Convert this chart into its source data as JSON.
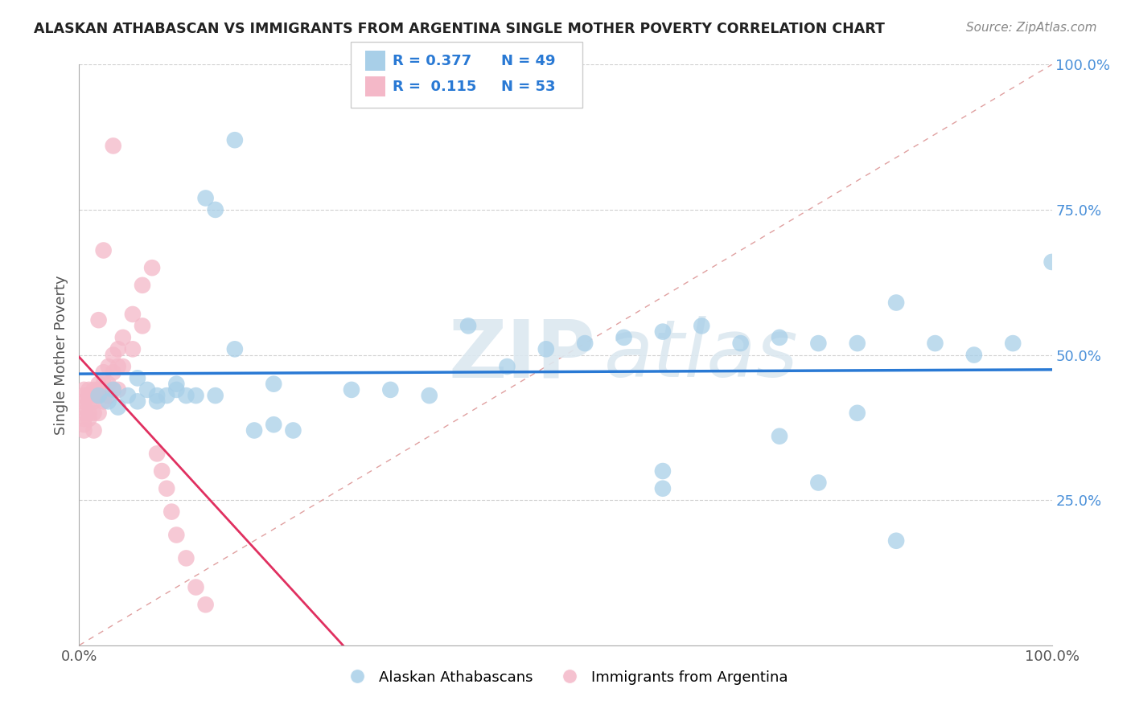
{
  "title": "ALASKAN ATHABASCAN VS IMMIGRANTS FROM ARGENTINA SINGLE MOTHER POVERTY CORRELATION CHART",
  "source": "Source: ZipAtlas.com",
  "ylabel": "Single Mother Poverty",
  "watermark_text": "ZIP",
  "watermark_text2": "atlas",
  "legend_blue_r": "R = 0.377",
  "legend_blue_n": "N = 49",
  "legend_pink_r": "R =  0.115",
  "legend_pink_n": "N = 53",
  "blue_color": "#a8cfe8",
  "pink_color": "#f4b8c8",
  "blue_line_color": "#2979d4",
  "pink_line_color": "#e03060",
  "diagonal_color": "#e0a0a0",
  "grid_color": "#d0d0d0",
  "blue_scatter_x": [
    0.035,
    0.06,
    0.1,
    0.14,
    0.2,
    0.28,
    0.32,
    0.36,
    0.4,
    0.44,
    0.48,
    0.52,
    0.56,
    0.6,
    0.64,
    0.68,
    0.72,
    0.76,
    0.8,
    0.84,
    0.88,
    0.92,
    0.96,
    1.0,
    0.02,
    0.03,
    0.04,
    0.05,
    0.06,
    0.07,
    0.08,
    0.08,
    0.09,
    0.1,
    0.11,
    0.12,
    0.13,
    0.14,
    0.16,
    0.16,
    0.18,
    0.2,
    0.22,
    0.6,
    0.6,
    0.72,
    0.76,
    0.8,
    0.84
  ],
  "blue_scatter_y": [
    0.44,
    0.42,
    0.44,
    0.43,
    0.45,
    0.44,
    0.44,
    0.43,
    0.55,
    0.48,
    0.51,
    0.52,
    0.53,
    0.54,
    0.55,
    0.52,
    0.53,
    0.52,
    0.52,
    0.59,
    0.52,
    0.5,
    0.52,
    0.66,
    0.43,
    0.42,
    0.41,
    0.43,
    0.46,
    0.44,
    0.42,
    0.43,
    0.43,
    0.45,
    0.43,
    0.43,
    0.77,
    0.75,
    0.51,
    0.87,
    0.37,
    0.38,
    0.37,
    0.3,
    0.27,
    0.36,
    0.28,
    0.4,
    0.18
  ],
  "pink_scatter_x": [
    0.005,
    0.005,
    0.005,
    0.005,
    0.005,
    0.005,
    0.005,
    0.005,
    0.01,
    0.01,
    0.01,
    0.01,
    0.01,
    0.015,
    0.015,
    0.015,
    0.015,
    0.015,
    0.02,
    0.02,
    0.02,
    0.02,
    0.025,
    0.025,
    0.025,
    0.025,
    0.03,
    0.03,
    0.03,
    0.035,
    0.035,
    0.035,
    0.04,
    0.04,
    0.04,
    0.045,
    0.045,
    0.055,
    0.055,
    0.065,
    0.065,
    0.075,
    0.08,
    0.085,
    0.09,
    0.095,
    0.1,
    0.11,
    0.12,
    0.13,
    0.035,
    0.025,
    0.02
  ],
  "pink_scatter_y": [
    0.44,
    0.43,
    0.42,
    0.41,
    0.4,
    0.39,
    0.38,
    0.37,
    0.44,
    0.43,
    0.42,
    0.4,
    0.39,
    0.44,
    0.43,
    0.42,
    0.4,
    0.37,
    0.45,
    0.44,
    0.43,
    0.4,
    0.47,
    0.45,
    0.44,
    0.42,
    0.48,
    0.45,
    0.43,
    0.5,
    0.47,
    0.44,
    0.51,
    0.48,
    0.44,
    0.53,
    0.48,
    0.57,
    0.51,
    0.62,
    0.55,
    0.65,
    0.33,
    0.3,
    0.27,
    0.23,
    0.19,
    0.15,
    0.1,
    0.07,
    0.86,
    0.68,
    0.56
  ],
  "xlim": [
    0.0,
    1.0
  ],
  "ylim": [
    0.0,
    1.0
  ],
  "figsize": [
    14.06,
    8.92
  ],
  "dpi": 100
}
